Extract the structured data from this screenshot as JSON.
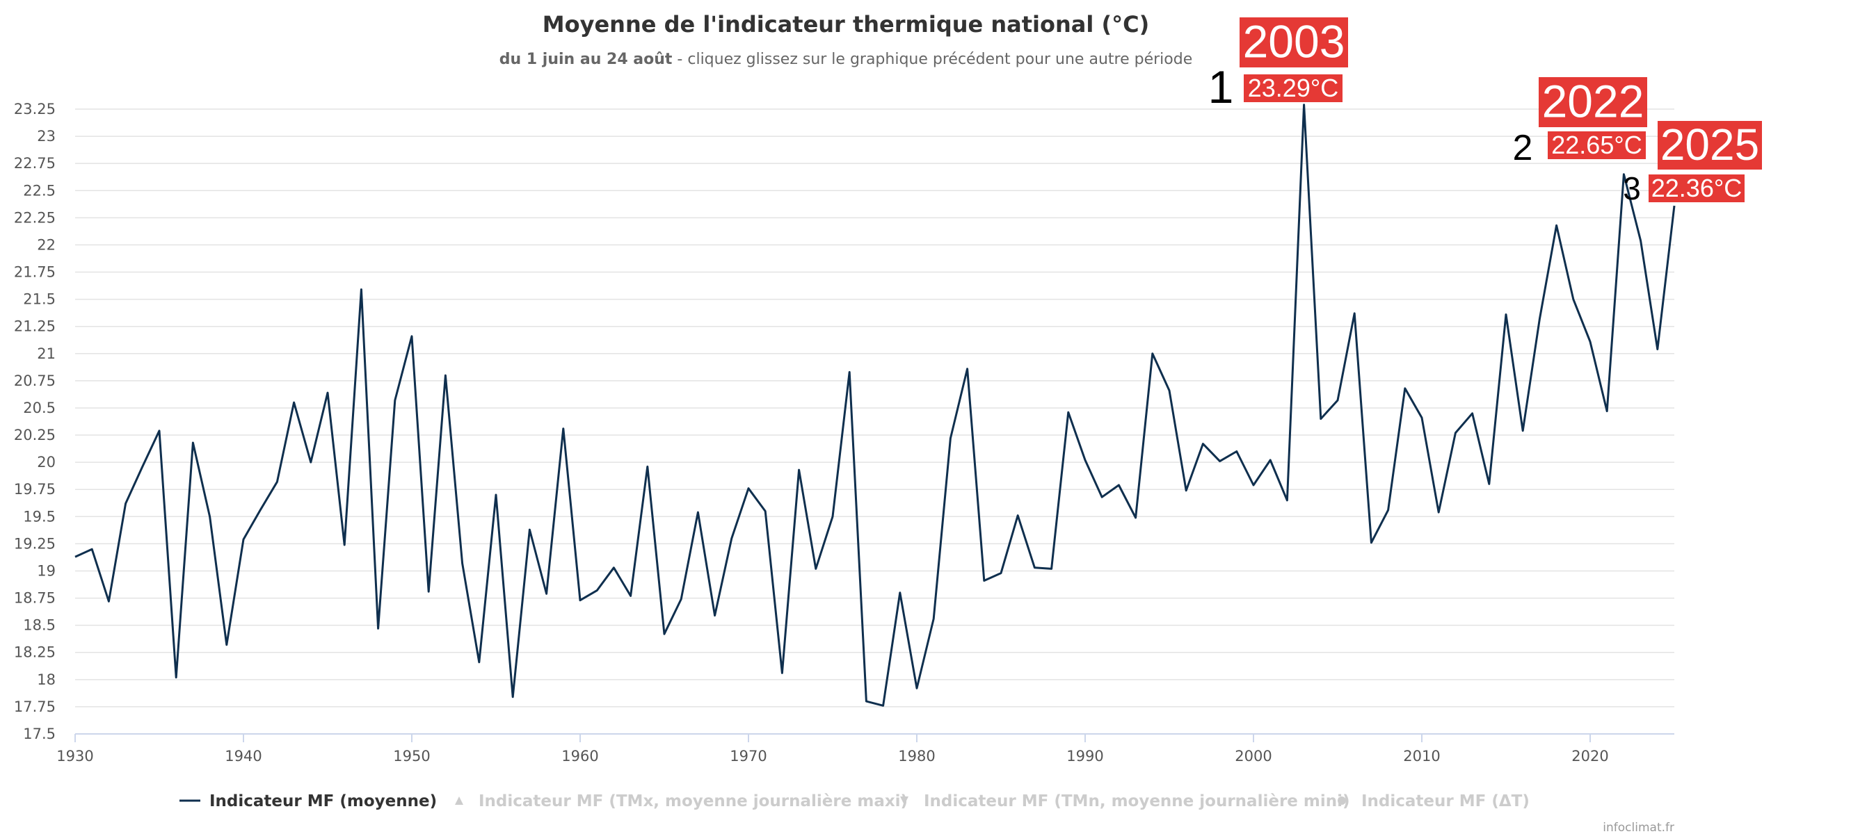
{
  "chart_data": {
    "type": "line",
    "title": "Moyenne de l'indicateur thermique national (°C)",
    "subtitle_bold": "du 1 juin au 24 août",
    "subtitle_rest": " - cliquez glissez sur le graphique précédent pour une autre période",
    "xlim": [
      1930,
      2025
    ],
    "ylim": [
      17.5,
      23.25
    ],
    "x_ticks": [
      "1930",
      "1940",
      "1950",
      "1960",
      "1970",
      "1980",
      "1990",
      "2000",
      "2010",
      "2020"
    ],
    "y_ticks": [
      "17.5",
      "17.75",
      "18",
      "18.25",
      "18.5",
      "18.75",
      "19",
      "19.25",
      "19.5",
      "19.75",
      "20",
      "20.25",
      "20.5",
      "20.75",
      "21",
      "21.25",
      "21.5",
      "21.75",
      "22",
      "22.25",
      "22.5",
      "22.75",
      "23",
      "23.25"
    ],
    "grid": true,
    "series": [
      {
        "name": "Indicateur MF (moyenne)",
        "color": "#0f2f4e",
        "x": [
          1930,
          1931,
          1932,
          1933,
          1934,
          1935,
          1936,
          1937,
          1938,
          1939,
          1940,
          1941,
          1942,
          1943,
          1944,
          1945,
          1946,
          1947,
          1948,
          1949,
          1950,
          1951,
          1952,
          1953,
          1954,
          1955,
          1956,
          1957,
          1958,
          1959,
          1960,
          1961,
          1962,
          1963,
          1964,
          1965,
          1966,
          1967,
          1968,
          1969,
          1970,
          1971,
          1972,
          1973,
          1974,
          1975,
          1976,
          1977,
          1978,
          1979,
          1980,
          1981,
          1982,
          1983,
          1984,
          1985,
          1986,
          1987,
          1988,
          1989,
          1990,
          1991,
          1992,
          1993,
          1994,
          1995,
          1996,
          1997,
          1998,
          1999,
          2000,
          2001,
          2002,
          2003,
          2004,
          2005,
          2006,
          2007,
          2008,
          2009,
          2010,
          2011,
          2012,
          2013,
          2014,
          2015,
          2016,
          2017,
          2018,
          2019,
          2020,
          2021,
          2022,
          2023,
          2024,
          2025
        ],
        "y": [
          19.13,
          19.2,
          18.72,
          19.62,
          19.96,
          20.29,
          18.02,
          20.18,
          19.5,
          18.32,
          19.29,
          19.56,
          19.82,
          20.55,
          20.0,
          20.64,
          19.24,
          21.59,
          18.47,
          20.57,
          21.16,
          18.81,
          20.8,
          19.07,
          18.16,
          19.7,
          17.84,
          19.38,
          18.79,
          20.31,
          18.73,
          18.82,
          19.03,
          18.77,
          19.96,
          18.42,
          18.74,
          19.54,
          18.59,
          19.3,
          19.76,
          19.55,
          18.06,
          19.93,
          19.02,
          19.5,
          20.83,
          17.8,
          17.76,
          18.8,
          17.92,
          18.56,
          20.22,
          20.86,
          18.91,
          18.98,
          19.51,
          19.03,
          19.02,
          20.46,
          20.02,
          19.68,
          19.79,
          19.49,
          21.0,
          20.66,
          19.74,
          20.17,
          20.01,
          20.1,
          19.79,
          20.02,
          19.65,
          23.29,
          20.4,
          20.57,
          21.37,
          19.26,
          19.56,
          20.68,
          20.41,
          19.54,
          20.27,
          20.45,
          19.8,
          21.36,
          20.29,
          21.32,
          22.18,
          21.5,
          21.11,
          20.47,
          22.65,
          22.04,
          21.04,
          22.36
        ]
      }
    ],
    "annotations": [
      {
        "rank": "1",
        "year": "2003",
        "value": "23.29°C"
      },
      {
        "rank": "2",
        "year": "2022",
        "value": "22.65°C"
      },
      {
        "rank": "3",
        "year": "2025",
        "value": "22.36°C"
      }
    ],
    "legend": {
      "placement": "bottom",
      "items": [
        {
          "label": "Indicateur MF (moyenne)",
          "symbol": "line",
          "active": true
        },
        {
          "label": "Indicateur MF (TMx, moyenne journalière maxi)",
          "symbol": "triangle-up",
          "active": false
        },
        {
          "label": "Indicateur MF (TMn, moyenne journalière mini)",
          "symbol": "triangle-down",
          "active": false
        },
        {
          "label": "Indicateur MF (ΔT)",
          "symbol": "circle",
          "active": false
        }
      ]
    },
    "credits": "infoclimat.fr",
    "colors": {
      "series": "#0f2f4e",
      "badge": "#e53935",
      "grid": "#e3e3e3",
      "legend_inactive": "#cccccc",
      "legend_active": "#333333"
    }
  }
}
